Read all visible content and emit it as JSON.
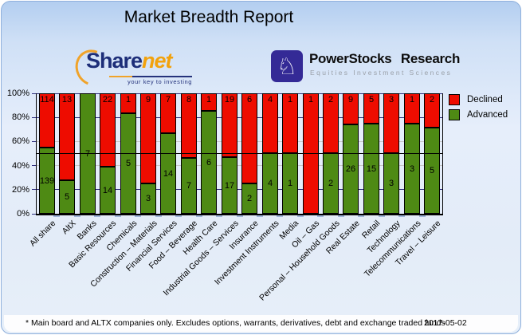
{
  "title": "Market Breadth Report",
  "logos": {
    "sharenet": {
      "name_part1": "Share",
      "name_part2": "net",
      "tagline": "your key to investing"
    },
    "powerstocks": {
      "name": "PowerStocks Research",
      "subtitle": "Equities Investment Sciences",
      "knight_icon": "♘"
    }
  },
  "chart_data": {
    "type": "bar",
    "stacked_percent": true,
    "title": "Market Breadth Report",
    "categories": [
      "All share",
      "AltX",
      "Banks",
      "Basic Resources",
      "Chemicals",
      "Construction – Materials",
      "Financial Services",
      "Food – Beverage",
      "Health Care",
      "Industrial Goods – Services",
      "Insurance",
      "Investment Instruments",
      "Media",
      "Oil – Gas",
      "Personal – Household Goods",
      "Real Estate",
      "Retail",
      "Technology",
      "Telecommunications",
      "Travel – Leisure"
    ],
    "series": [
      {
        "name": "Declined",
        "color": "#ee0c00",
        "values": [
          114,
          13,
          0,
          22,
          1,
          9,
          7,
          8,
          1,
          19,
          6,
          4,
          1,
          1,
          2,
          9,
          5,
          3,
          1,
          2
        ]
      },
      {
        "name": "Advanced",
        "color": "#4e8a14",
        "values": [
          139,
          5,
          7,
          14,
          5,
          3,
          14,
          7,
          6,
          17,
          2,
          4,
          1,
          0,
          2,
          26,
          15,
          3,
          3,
          5
        ]
      }
    ],
    "y_ticks": [
      "100%",
      "80%",
      "60%",
      "40%",
      "20%",
      "0%"
    ],
    "ylim": [
      0,
      100
    ],
    "legend_position": "top-right",
    "grid": {
      "major_color": "#31317f",
      "minor_color": "#c8c8c8",
      "half_line_color": "#000000"
    }
  },
  "footer": {
    "note": "* Main board and ALTX companies only. Excludes options, warrants, derivatives, debt and exchange traded funds",
    "date": "2017-05-02"
  }
}
